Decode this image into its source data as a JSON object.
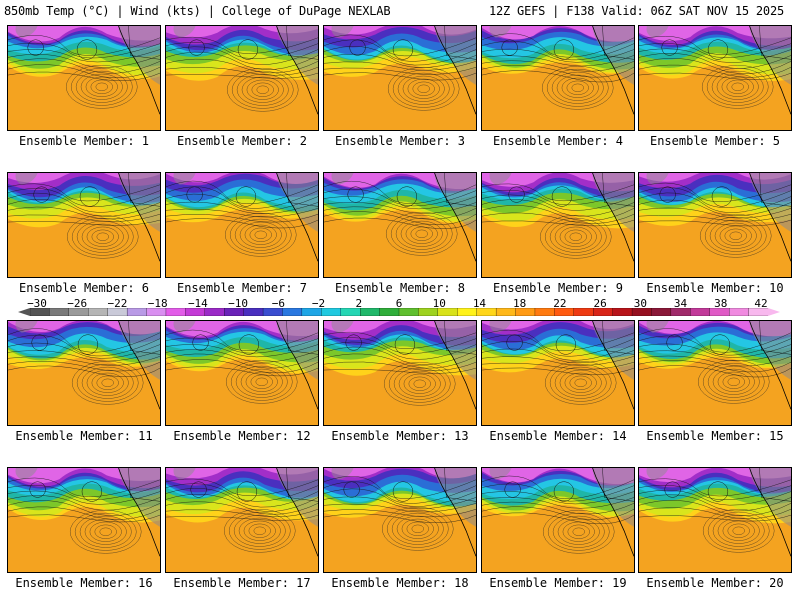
{
  "header": {
    "left": "850mb Temp (°C) | Wind (kts) | College of DuPage NEXLAB",
    "right": "12Z GEFS | F138 Valid: 06Z SAT NOV 15 2025"
  },
  "members": [
    {
      "label": "Ensemble Member: 1"
    },
    {
      "label": "Ensemble Member: 2"
    },
    {
      "label": "Ensemble Member: 3"
    },
    {
      "label": "Ensemble Member: 4"
    },
    {
      "label": "Ensemble Member: 5"
    },
    {
      "label": "Ensemble Member: 6"
    },
    {
      "label": "Ensemble Member: 7"
    },
    {
      "label": "Ensemble Member: 8"
    },
    {
      "label": "Ensemble Member: 9"
    },
    {
      "label": "Ensemble Member: 10"
    },
    {
      "label": "Ensemble Member: 11"
    },
    {
      "label": "Ensemble Member: 12"
    },
    {
      "label": "Ensemble Member: 13"
    },
    {
      "label": "Ensemble Member: 14"
    },
    {
      "label": "Ensemble Member: 15"
    },
    {
      "label": "Ensemble Member: 16"
    },
    {
      "label": "Ensemble Member: 17"
    },
    {
      "label": "Ensemble Member: 18"
    },
    {
      "label": "Ensemble Member: 19"
    },
    {
      "label": "Ensemble Member: 20"
    }
  ],
  "colorbar": {
    "ticks": [
      "−30",
      "−26",
      "−22",
      "−18",
      "−14",
      "−10",
      "−6",
      "−2",
      "2",
      "6",
      "10",
      "14",
      "18",
      "22",
      "26",
      "30",
      "34",
      "38",
      "42"
    ],
    "colors": [
      "#555555",
      "#7a7a7a",
      "#9a9a9a",
      "#b5b5b5",
      "#c9c9d8",
      "#b99ae6",
      "#d98ff0",
      "#e25ce8",
      "#c43ad6",
      "#9b2ac7",
      "#6a22b8",
      "#4a2fbf",
      "#3a4ed0",
      "#2a78e0",
      "#1fa6e6",
      "#20c9e0",
      "#25d6b4",
      "#20b86a",
      "#2fae3a",
      "#5fbf2e",
      "#9ed21f",
      "#d8e21a",
      "#fff21a",
      "#ffd61a",
      "#ffb81a",
      "#ff9a14",
      "#ff7a10",
      "#ff5a10",
      "#ee3a12",
      "#d82418",
      "#b8141a",
      "#961020",
      "#8a1838",
      "#a02a6a",
      "#c23a9a",
      "#e05ac6",
      "#f08ae0",
      "#f8b8ee"
    ]
  }
}
